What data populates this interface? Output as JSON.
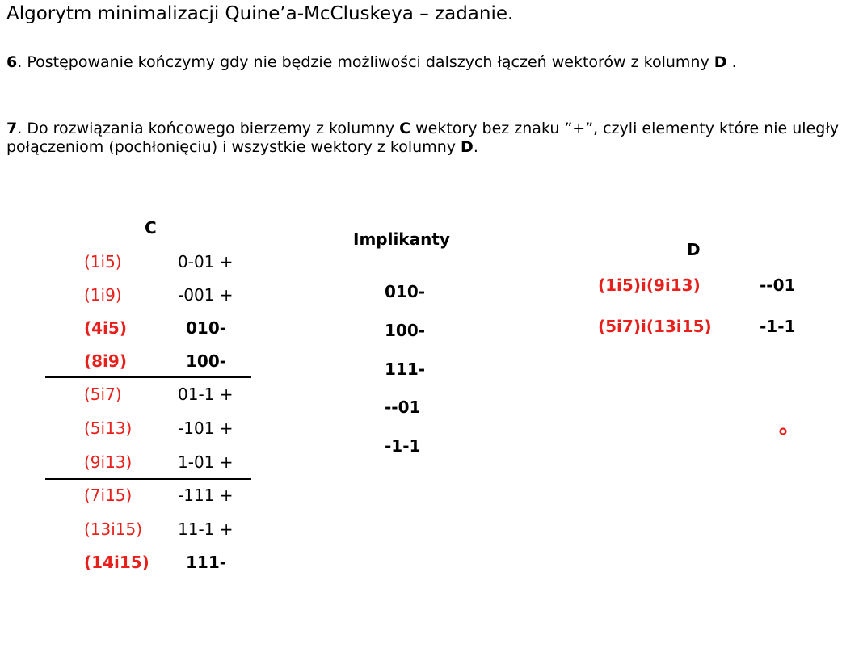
{
  "title": "Algorytm minimalizacji Quine’a-McCluskeya – zadanie.",
  "step6": {
    "num": "6",
    "text_a": ". Postępowanie kończymy gdy nie będzie możliwości dalszych łączeń wektorów z kolumny ",
    "col": "D",
    "text_b": " ."
  },
  "step7": {
    "num": "7",
    "text_a": ". Do rozwiązania końcowego bierzemy z kolumny ",
    "col_c": "C",
    "text_b": " wektory bez znaku ”+”, czyli elementy które nie uległy połączeniom (pochłonięciu) i wszystkie wektory z kolumny ",
    "col_d": "D",
    "text_c": "."
  },
  "column_c": {
    "header": "C",
    "rows": [
      {
        "pair": "(1i5)",
        "vec": "0-01 +"
      },
      {
        "pair": "(1i9)",
        "vec": "-001 +"
      },
      {
        "pair": "(4i5)",
        "vec": "010-"
      },
      {
        "pair": "(8i9)",
        "vec": "100-"
      },
      {
        "pair": "(5i7)",
        "vec": "01-1 +"
      },
      {
        "pair": "(5i13)",
        "vec": "-101 +"
      },
      {
        "pair": "(9i13)",
        "vec": "1-01 +"
      },
      {
        "pair": "(7i15)",
        "vec": "-111 +"
      },
      {
        "pair": "(13i15)",
        "vec": "11-1 +"
      },
      {
        "pair": "(14i15)",
        "vec": "111-"
      }
    ]
  },
  "implicants": {
    "header": "Implikanty",
    "items": [
      "010-",
      "100-",
      "111-",
      "--01",
      "-1-1"
    ]
  },
  "column_d": {
    "header": "D",
    "rows": [
      {
        "pair": "(1i5)i(9i13)",
        "vec": "--01"
      },
      {
        "pair": "(5i7)i(13i15)",
        "vec": "-1-1"
      }
    ]
  },
  "colors": {
    "accent_red": "#e8201c",
    "text": "#000000",
    "background": "#ffffff"
  }
}
